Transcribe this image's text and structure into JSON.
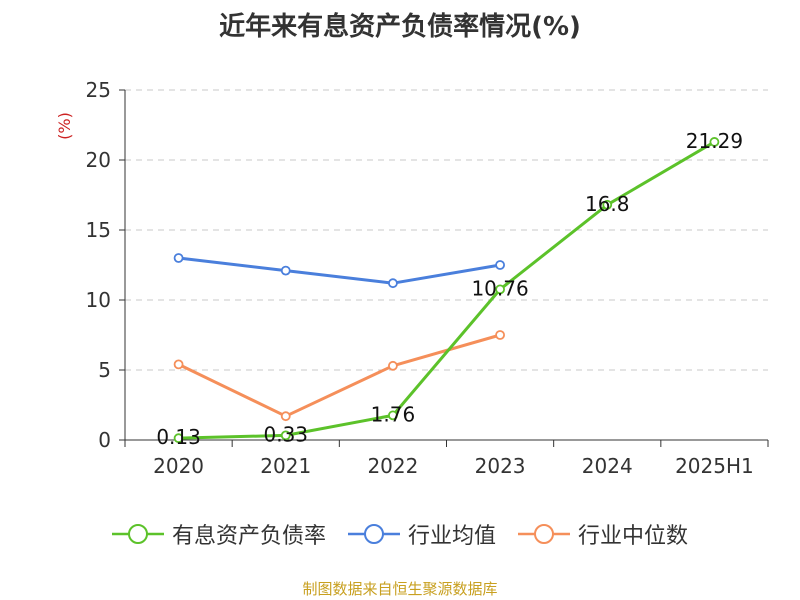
{
  "title": "近年来有息资产负债率情况(%)",
  "source_note": "制图数据来自恒生聚源数据库",
  "chart_data": {
    "type": "line",
    "title": "近年来有息资产负债率情况(%)",
    "ylabel": "(%)",
    "xlabel": "",
    "categories": [
      "2020",
      "2021",
      "2022",
      "2023",
      "2024",
      "2025H1"
    ],
    "ylim": [
      0,
      25
    ],
    "yticks": [
      0,
      5,
      10,
      15,
      20,
      25
    ],
    "grid": true,
    "legend_position": "bottom",
    "series": [
      {
        "name": "有息资产负债率",
        "color": "#5cc22a",
        "values": [
          0.13,
          0.33,
          1.76,
          10.76,
          16.8,
          21.29
        ],
        "labels": [
          "0.13",
          "0.33",
          "1.76",
          "10.76",
          "16.8",
          "21.29"
        ]
      },
      {
        "name": "行业均值",
        "color": "#4a7fdc",
        "values": [
          13.0,
          12.1,
          11.2,
          12.5,
          null,
          null
        ]
      },
      {
        "name": "行业中位数",
        "color": "#f58f5a",
        "values": [
          5.4,
          1.7,
          5.3,
          7.5,
          null,
          null
        ]
      }
    ]
  }
}
